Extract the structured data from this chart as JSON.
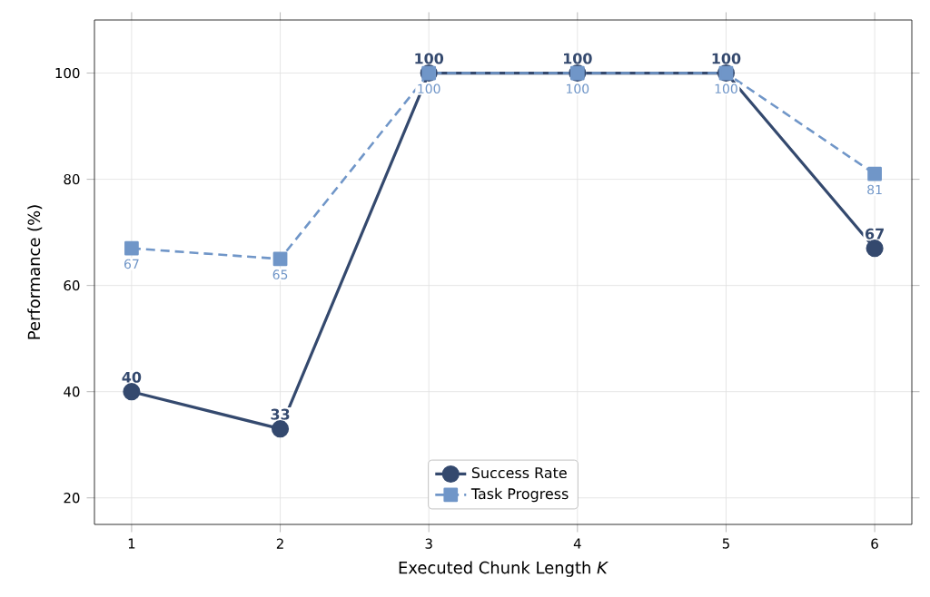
{
  "chart_data": {
    "type": "line",
    "xlabel": "Executed Chunk Length *K*",
    "ylabel": "Performance (%)",
    "x": [
      1,
      2,
      3,
      4,
      5,
      6
    ],
    "xlim": [
      0.75,
      6.25
    ],
    "xticks": [
      1,
      2,
      3,
      4,
      5,
      6
    ],
    "ylim": [
      15,
      110
    ],
    "yticks": [
      20,
      40,
      60,
      80,
      100
    ],
    "series": [
      {
        "name": "Success Rate",
        "color": "#34496e",
        "values": [
          40,
          33,
          100,
          100,
          100,
          67
        ],
        "marker": "circle",
        "line_style": "solid",
        "value_labels": [
          "40",
          "33",
          "100",
          "100",
          "100",
          "67"
        ]
      },
      {
        "name": "Task Progress",
        "color": "#7096c8",
        "values": [
          67,
          65,
          100,
          100,
          100,
          81
        ],
        "marker": "square",
        "line_style": "dashed",
        "value_labels": [
          "67",
          "65",
          "100",
          "100",
          "100",
          "81"
        ]
      }
    ],
    "grid": true,
    "legend": "bottom"
  }
}
